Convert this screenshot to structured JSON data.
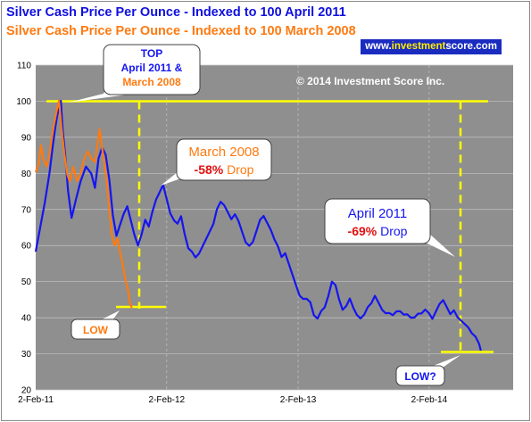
{
  "header": {
    "title_line1": "Silver Cash Price Per Ounce  - Indexed to 100 April 2011",
    "title_line2": "Silver Cash Price Per Ounce  - Indexed to 100 March 2008",
    "website_prefix": "www.",
    "website_highlight": "investment",
    "website_suffix": "score.com",
    "copyright": "© 2014 Investment Score Inc."
  },
  "callouts": {
    "top_line1": "TOP",
    "top_line2": "April 2011 &",
    "top_line3": "March 2008",
    "march2008_title": "March 2008",
    "march2008_pct": "-58%",
    "march2008_word": " Drop",
    "april2011_title": "April 2011",
    "april2011_pct": "-69%",
    "april2011_word": " Drop",
    "low": "LOW",
    "low_q": "LOW?"
  },
  "colors": {
    "plot_bg": "#8f8f8f",
    "grid": "#c4c4c4",
    "series_2011": "#1515f0",
    "series_2008": "#ff7a10",
    "reference_lines": "#ffff00",
    "drop_red": "#e01010",
    "title_blue": "#1010e0",
    "title_orange": "#ff7a10"
  },
  "chart_data": {
    "type": "line",
    "title": "Silver Cash Price Per Ounce",
    "ylim": [
      20,
      110
    ],
    "yticks": [
      20,
      30,
      40,
      50,
      60,
      70,
      80,
      90,
      100,
      110
    ],
    "xlim": [
      0,
      1330
    ],
    "xtick_labels": [
      {
        "label": "2-Feb-11",
        "day": 0
      },
      {
        "label": "2-Feb-12",
        "day": 365
      },
      {
        "label": "2-Feb-13",
        "day": 731
      },
      {
        "label": "2-Feb-14",
        "day": 1096
      }
    ],
    "grid": true,
    "reference_levels": {
      "top": 100,
      "low_2008": 43,
      "low_2011": 30.5
    },
    "series": [
      {
        "name": "Indexed to 100 April 2011",
        "color": "#1515f0",
        "points": [
          [
            0,
            58
          ],
          [
            12,
            65
          ],
          [
            25,
            72
          ],
          [
            38,
            80
          ],
          [
            48,
            88
          ],
          [
            55,
            93
          ],
          [
            60,
            96
          ],
          [
            65,
            98
          ],
          [
            70,
            100
          ],
          [
            75,
            92
          ],
          [
            82,
            85
          ],
          [
            90,
            75
          ],
          [
            100,
            68
          ],
          [
            112,
            73
          ],
          [
            125,
            78
          ],
          [
            140,
            82
          ],
          [
            155,
            80
          ],
          [
            165,
            76
          ],
          [
            175,
            84
          ],
          [
            185,
            87
          ],
          [
            195,
            85
          ],
          [
            205,
            78
          ],
          [
            215,
            68
          ],
          [
            225,
            63
          ],
          [
            235,
            66
          ],
          [
            245,
            69
          ],
          [
            255,
            71
          ],
          [
            265,
            67
          ],
          [
            275,
            63
          ],
          [
            285,
            60
          ],
          [
            295,
            63
          ],
          [
            305,
            67
          ],
          [
            315,
            65
          ],
          [
            325,
            69
          ],
          [
            335,
            73
          ],
          [
            345,
            75
          ],
          [
            355,
            77
          ],
          [
            365,
            73
          ],
          [
            375,
            69
          ],
          [
            385,
            67
          ],
          [
            395,
            66
          ],
          [
            405,
            68
          ],
          [
            415,
            63
          ],
          [
            425,
            59
          ],
          [
            435,
            58
          ],
          [
            445,
            57
          ],
          [
            455,
            58
          ],
          [
            465,
            60
          ],
          [
            475,
            62
          ],
          [
            485,
            64
          ],
          [
            495,
            66
          ],
          [
            505,
            70
          ],
          [
            515,
            72
          ],
          [
            525,
            71
          ],
          [
            535,
            69
          ],
          [
            545,
            67
          ],
          [
            555,
            69
          ],
          [
            565,
            67
          ],
          [
            575,
            64
          ],
          [
            585,
            61
          ],
          [
            595,
            60
          ],
          [
            605,
            61
          ],
          [
            615,
            64
          ],
          [
            625,
            67
          ],
          [
            635,
            68
          ],
          [
            645,
            66
          ],
          [
            655,
            64
          ],
          [
            665,
            62
          ],
          [
            675,
            60
          ],
          [
            685,
            57
          ],
          [
            695,
            58
          ],
          [
            705,
            55
          ],
          [
            715,
            52
          ],
          [
            725,
            49
          ],
          [
            735,
            46
          ],
          [
            745,
            45
          ],
          [
            755,
            45
          ],
          [
            765,
            44
          ],
          [
            775,
            41
          ],
          [
            785,
            40
          ],
          [
            795,
            42
          ],
          [
            805,
            43
          ],
          [
            815,
            46
          ],
          [
            825,
            50
          ],
          [
            835,
            49
          ],
          [
            845,
            45
          ],
          [
            855,
            42
          ],
          [
            865,
            43
          ],
          [
            875,
            45
          ],
          [
            885,
            43
          ],
          [
            895,
            41
          ],
          [
            905,
            40
          ],
          [
            915,
            41
          ],
          [
            925,
            43
          ],
          [
            935,
            44
          ],
          [
            945,
            46
          ],
          [
            955,
            44
          ],
          [
            965,
            42
          ],
          [
            975,
            41
          ],
          [
            985,
            41
          ],
          [
            995,
            41
          ],
          [
            1005,
            42
          ],
          [
            1015,
            42
          ],
          [
            1025,
            41
          ],
          [
            1035,
            41
          ],
          [
            1045,
            40
          ],
          [
            1055,
            40
          ],
          [
            1065,
            41
          ],
          [
            1075,
            41
          ],
          [
            1085,
            42
          ],
          [
            1095,
            41
          ],
          [
            1105,
            40
          ],
          [
            1115,
            42
          ],
          [
            1125,
            44
          ],
          [
            1135,
            45
          ],
          [
            1145,
            43
          ],
          [
            1155,
            41
          ],
          [
            1165,
            42
          ],
          [
            1175,
            40
          ],
          [
            1185,
            39
          ],
          [
            1195,
            38
          ],
          [
            1205,
            37
          ],
          [
            1215,
            36
          ],
          [
            1225,
            35
          ],
          [
            1235,
            33
          ],
          [
            1240,
            31
          ]
        ]
      },
      {
        "name": "Indexed to 100 March 2008",
        "color": "#ff7a10",
        "points": [
          [
            0,
            80
          ],
          [
            8,
            83
          ],
          [
            15,
            88
          ],
          [
            22,
            84
          ],
          [
            30,
            82
          ],
          [
            38,
            85
          ],
          [
            45,
            90
          ],
          [
            52,
            94
          ],
          [
            58,
            97
          ],
          [
            65,
            100
          ],
          [
            72,
            92
          ],
          [
            80,
            85
          ],
          [
            88,
            80
          ],
          [
            95,
            78
          ],
          [
            105,
            82
          ],
          [
            115,
            78
          ],
          [
            125,
            80
          ],
          [
            135,
            84
          ],
          [
            145,
            86
          ],
          [
            155,
            84
          ],
          [
            165,
            83
          ],
          [
            172,
            88
          ],
          [
            178,
            92
          ],
          [
            184,
            88
          ],
          [
            190,
            84
          ],
          [
            198,
            78
          ],
          [
            205,
            70
          ],
          [
            212,
            63
          ],
          [
            220,
            60
          ],
          [
            228,
            62
          ],
          [
            235,
            58
          ],
          [
            242,
            55
          ],
          [
            250,
            50
          ],
          [
            258,
            47
          ],
          [
            263,
            44
          ],
          [
            268,
            43
          ]
        ]
      }
    ]
  }
}
